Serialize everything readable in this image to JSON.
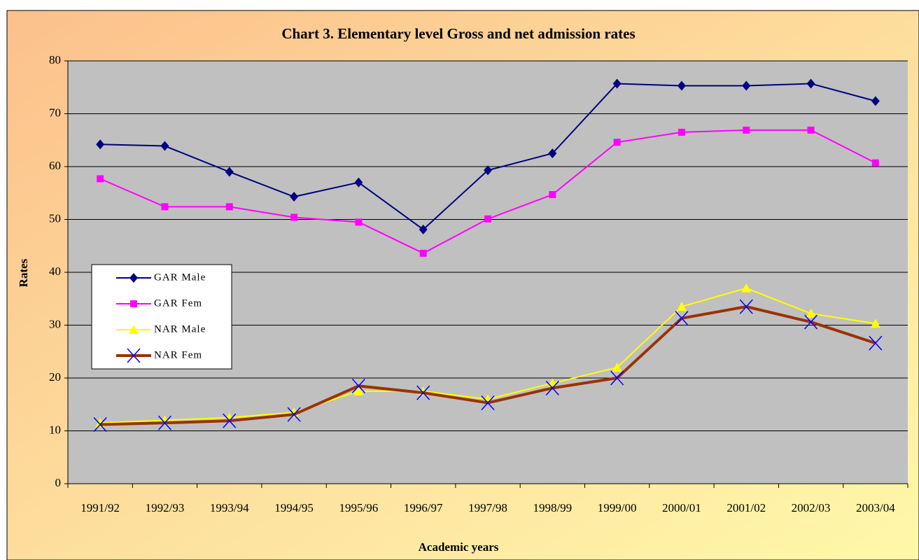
{
  "chart_data": {
    "type": "line",
    "title": "Chart 3. Elementary level Gross and net admission rates",
    "x_label": "Academic years",
    "y_label": "Rates",
    "categories": [
      "1991/92",
      "1992/93",
      "1993/94",
      "1994/95",
      "1995/96",
      "1996/97",
      "1997/98",
      "1998/99",
      "1999/00",
      "2000/01",
      "2001/02",
      "2002/03",
      "2003/04"
    ],
    "series": [
      {
        "name": "GAR Male",
        "color": "#000080",
        "marker": "diamond",
        "marker_color": "#000080",
        "line_width": 2,
        "values": [
          64.2,
          63.9,
          59,
          54.3,
          57,
          48.1,
          59.3,
          62.5,
          75.7,
          75.3,
          75.3,
          75.7,
          72.4
        ]
      },
      {
        "name": "GAR Fem",
        "color": "#ff00ff",
        "marker": "square",
        "marker_color": "#ff00ff",
        "line_width": 2,
        "values": [
          57.7,
          52.4,
          52.4,
          50.4,
          49.5,
          43.6,
          50.1,
          54.7,
          64.6,
          66.5,
          66.9,
          66.9,
          60.7
        ]
      },
      {
        "name": "NAR Male",
        "color": "#ffff00",
        "marker": "triangle",
        "marker_color": "#ffff00",
        "line_width": 2,
        "values": [
          11.5,
          12,
          12.5,
          13.5,
          17.5,
          17.5,
          16,
          19,
          22,
          33.5,
          37,
          32.2,
          30.3
        ]
      },
      {
        "name": "NAR Fem",
        "color": "#993300",
        "marker": "x",
        "marker_color": "#0000ff",
        "line_width": 4,
        "values": [
          11.2,
          11.5,
          11.9,
          13.1,
          18.5,
          17.2,
          15.3,
          18.1,
          20,
          31.3,
          33.5,
          30.6,
          26.6
        ]
      }
    ],
    "ylim": [
      0,
      80
    ],
    "yticks": [
      0,
      10,
      20,
      30,
      40,
      50,
      60,
      70,
      80
    ],
    "grid": true
  }
}
